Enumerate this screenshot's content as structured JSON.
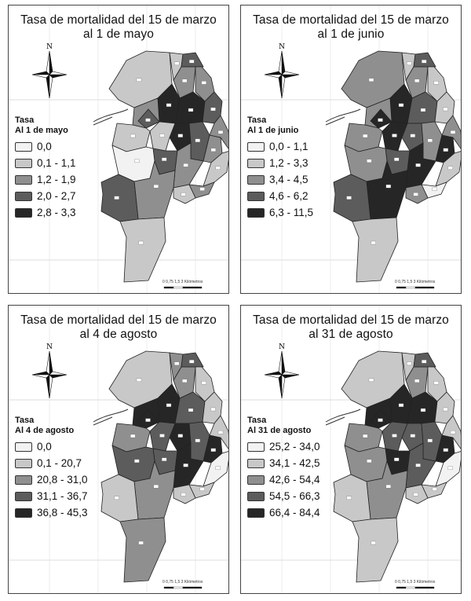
{
  "panels": [
    {
      "title_line1": "Tasa de mortalidad del 15 de marzo",
      "title_line2": "al 1 de mayo",
      "legend_title": "Tasa",
      "legend_subtitle": "Al 1 de mayo",
      "classes": [
        "0,0",
        "0,1 - 1,1",
        "1,2 - 1,9",
        "2,0 - 2,7",
        "2,8 - 3,3"
      ],
      "scale_text": "0 0,75 1,5   3 Kilómetros"
    },
    {
      "title_line1": "Tasa de mortalidad del 15 de marzo",
      "title_line2": "al 1 de junio",
      "legend_title": "Tasa",
      "legend_subtitle": "Al 1 de junio",
      "classes": [
        "0,0 - 1,1",
        "1,2 - 3,3",
        "3,4 - 4,5",
        "4,6 - 6,2",
        "6,3 - 11,5"
      ],
      "scale_text": "0 0,75 1,5   3 Kilómetros"
    },
    {
      "title_line1": "Tasa de mortalidad del 15 de marzo",
      "title_line2": "al 4 de agosto",
      "legend_title": "Tasa",
      "legend_subtitle": "Al 4 de agosto",
      "classes": [
        "0,0",
        "0,1 - 20,7",
        "20,8 - 31,0",
        "31,1 - 36,7",
        "36,8 - 45,3"
      ],
      "scale_text": "0 0,75 1,5   3 Kilómetros"
    },
    {
      "title_line1": "Tasa de mortalidad del 15 de marzo",
      "title_line2": "al 31 de agosto",
      "legend_title": "Tasa",
      "legend_subtitle": "Al 31 de agosto",
      "classes": [
        "25,2 - 34,0",
        "34,1 - 42,5",
        "42,6 - 54,4",
        "54,5 - 66,3",
        "66,4 - 84,4"
      ],
      "scale_text": "0 0,75 1,5   3 Kilómetros"
    }
  ],
  "north_label": "N",
  "class_colors": [
    "#f2f2f2",
    "#c8c8c8",
    "#8f8f8f",
    "#5c5c5c",
    "#262626"
  ],
  "zone_classes": [
    [
      1,
      1,
      2,
      3,
      4,
      4,
      2,
      3,
      4,
      3,
      2,
      1,
      3,
      2,
      1,
      0,
      2,
      3,
      1,
      2,
      3,
      2,
      1,
      2,
      1
    ],
    [
      2,
      1,
      2,
      3,
      4,
      3,
      2,
      4,
      3,
      2,
      4,
      4,
      3,
      4,
      2,
      2,
      4,
      3,
      1,
      1,
      1,
      2,
      1,
      0,
      2
    ],
    [
      1,
      2,
      2,
      3,
      4,
      3,
      4,
      4,
      4,
      3,
      4,
      3,
      3,
      4,
      2,
      3,
      2,
      1,
      2,
      1,
      1,
      1,
      0,
      1,
      1
    ],
    [
      1,
      1,
      2,
      3,
      4,
      4,
      4,
      4,
      3,
      3,
      4,
      3,
      4,
      3,
      2,
      2,
      2,
      1,
      1,
      1,
      1,
      1,
      0,
      1,
      1
    ]
  ]
}
